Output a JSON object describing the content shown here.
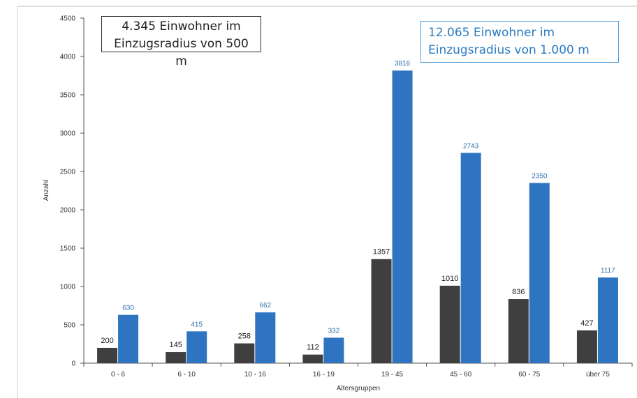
{
  "chart_data": {
    "type": "bar",
    "title": "",
    "xlabel": "Altersgruppen",
    "ylabel": "Anzahl",
    "ylim": [
      0,
      4500
    ],
    "yticks": [
      0,
      500,
      1000,
      1500,
      2000,
      2500,
      3000,
      3500,
      4000,
      4500
    ],
    "grid": false,
    "categories": [
      "0 - 6",
      "6 - 10",
      "10 - 16",
      "16 - 19",
      "19 - 45",
      "45 - 60",
      "60 - 75",
      "über 75"
    ],
    "series": [
      {
        "name": "4.345 Einwohner im Einzugsradius von 500 m",
        "color": "#3f3f3f",
        "label_color": "#1a1a1a",
        "values": [
          200,
          145,
          258,
          112,
          1357,
          1010,
          836,
          427
        ]
      },
      {
        "name": "12.065 Einwohner im Einzugsradius von 1.000 m",
        "color": "#2e74c0",
        "label_color": "#2f6ea8",
        "values": [
          630,
          415,
          662,
          332,
          3816,
          2743,
          2350,
          1117
        ]
      }
    ]
  },
  "legend": {
    "box_500": {
      "line1": "4.345 Einwohner im",
      "line2": "Einzugsradius von 500 m"
    },
    "box_1000": {
      "line1": "12.065 Einwohner im",
      "line2": "Einzugsradius von 1.000 m"
    }
  }
}
